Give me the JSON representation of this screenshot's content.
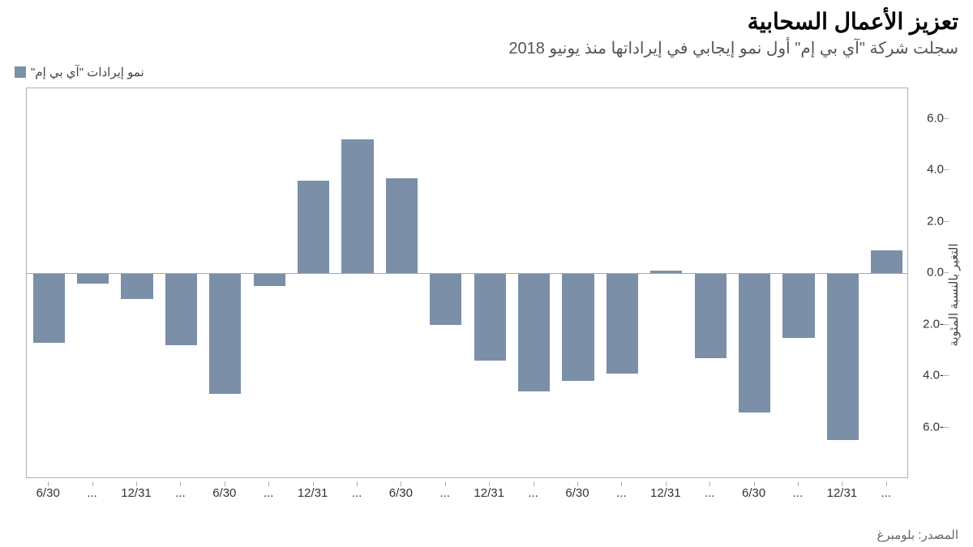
{
  "title": "تعزيز الأعمال السحابية",
  "subtitle": "سجلت شركة \"آي بي إم\" أول نمو إيجابي في إيراداتها منذ يونيو 2018",
  "legend": {
    "label": "نمو إيرادات \"آي بي إم\"",
    "swatch_color": "#7b8fa8"
  },
  "source": "المصدر: بلومبرغ",
  "chart": {
    "type": "bar",
    "ylim": [
      -8.0,
      7.2
    ],
    "yticks": [
      -6.0,
      -4.0,
      -2.0,
      0.0,
      2.0,
      4.0,
      6.0
    ],
    "ytick_labels": [
      "-6.0",
      "-4.0",
      "-2.0",
      "0.0",
      "2.0",
      "4.0",
      "6.0"
    ],
    "yaxis_title": "التغير بالنسبة المئوية",
    "bar_color": "#7b8fa8",
    "bar_width": 0.72,
    "background_color": "#ffffff",
    "border_color": "#b0b0b0",
    "xlabels": [
      "6/30",
      "...",
      "12/31",
      "...",
      "6/30",
      "...",
      "12/31",
      "...",
      "6/30",
      "...",
      "12/31",
      "...",
      "6/30",
      "...",
      "12/31",
      "...",
      "6/30",
      "...",
      "12/31",
      "..."
    ],
    "values": [
      -2.7,
      -0.4,
      -1.0,
      -2.8,
      -4.7,
      -0.5,
      3.6,
      5.2,
      3.7,
      -2.0,
      -3.4,
      -4.6,
      -4.2,
      -3.9,
      0.1,
      -3.3,
      -5.4,
      -2.5,
      -6.5,
      0.9
    ]
  }
}
